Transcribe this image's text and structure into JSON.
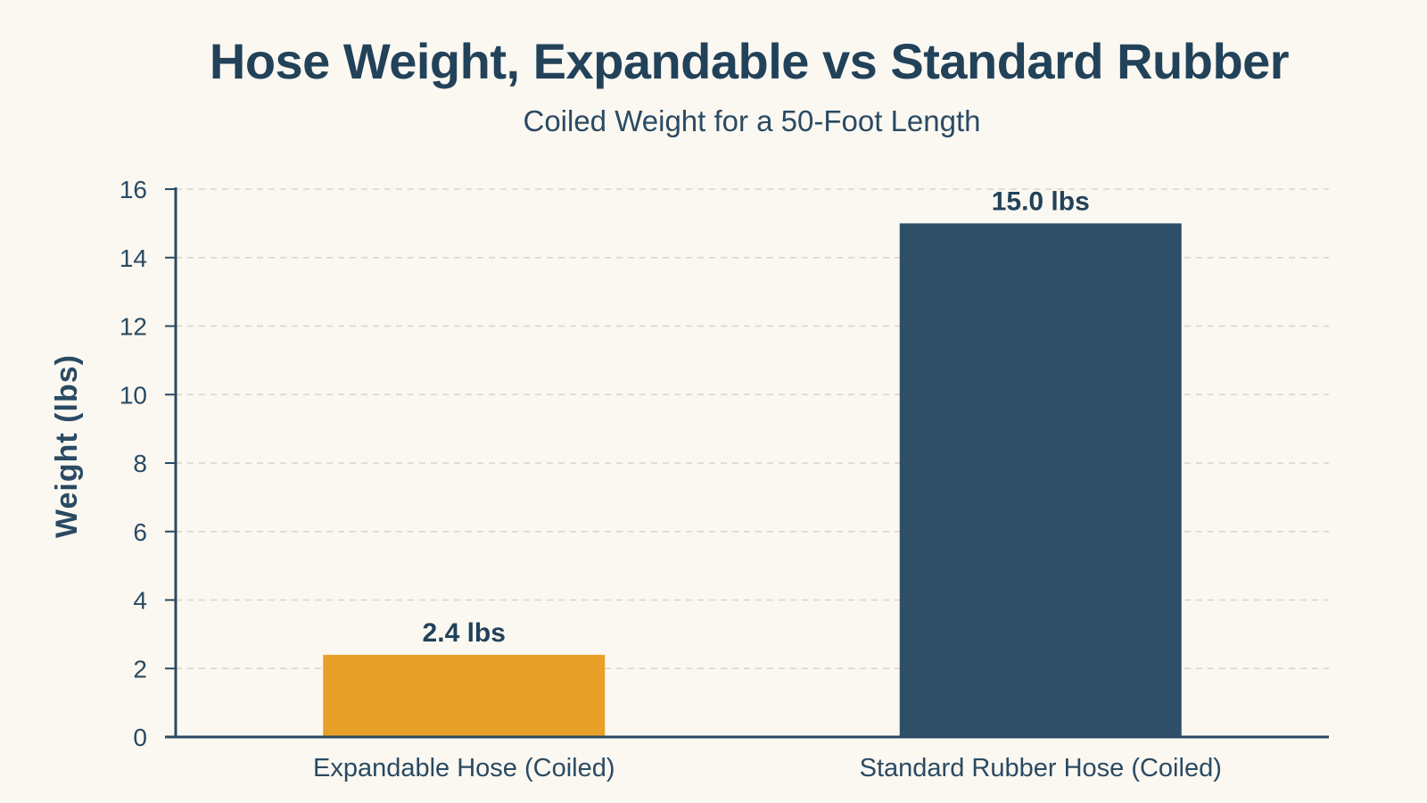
{
  "chart_data": {
    "type": "bar",
    "title": "Hose Weight, Expandable vs Standard Rubber",
    "subtitle": "Coiled Weight for a 50-Foot Length",
    "xlabel": "",
    "ylabel": "Weight (lbs)",
    "ylim": [
      0,
      16
    ],
    "yticks": [
      0,
      2,
      4,
      6,
      8,
      10,
      12,
      14,
      16
    ],
    "grid": true,
    "categories": [
      "Expandable Hose (Coiled)",
      "Standard Rubber Hose (Coiled)"
    ],
    "values": [
      2.4,
      15.0
    ],
    "data_labels": [
      "2.4 lbs",
      "15.0 lbs"
    ],
    "colors": [
      "#e8a028",
      "#2f4f68"
    ]
  }
}
